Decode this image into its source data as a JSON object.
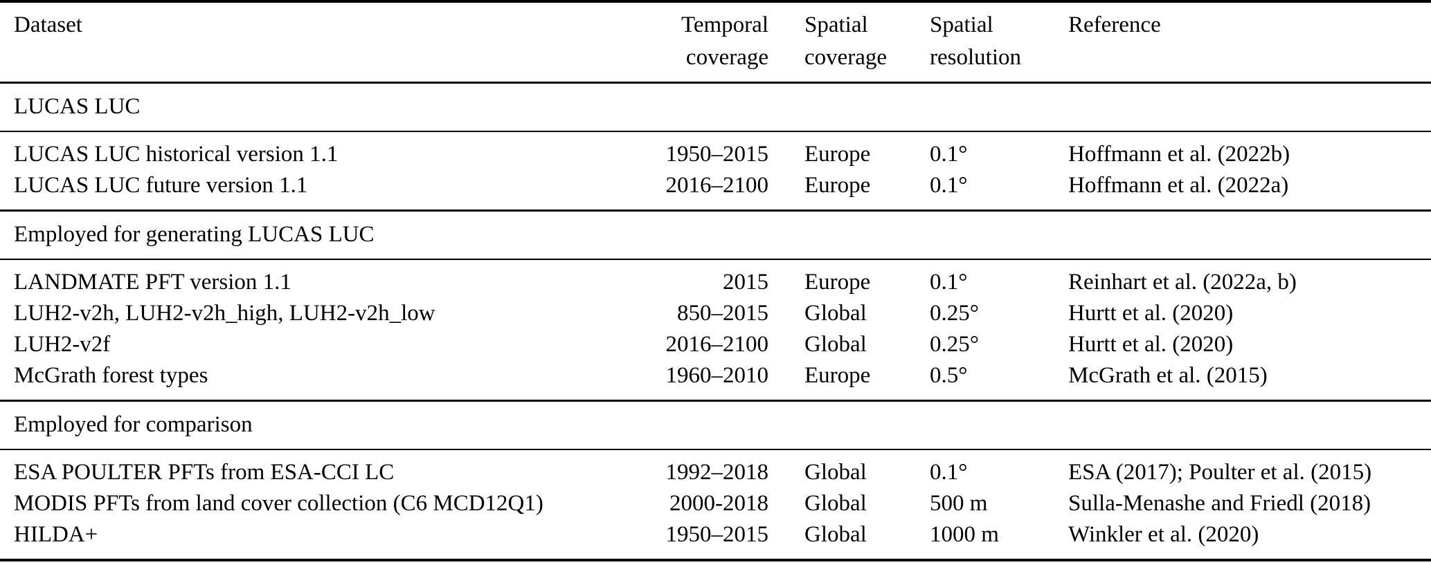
{
  "table": {
    "header": {
      "dataset": "Dataset",
      "temporal": {
        "line1": "Temporal",
        "line2": "coverage"
      },
      "spatial": {
        "line1": "Spatial",
        "line2": "coverage"
      },
      "resolution": {
        "line1": "Spatial",
        "line2": "resolution"
      },
      "reference": "Reference"
    },
    "sections": [
      {
        "title": "LUCAS LUC",
        "rows": [
          {
            "dataset": "LUCAS LUC historical version 1.1",
            "temporal": "1950–2015",
            "spatial": "Europe",
            "resolution": "0.1°",
            "reference": "Hoffmann et al. (2022b)"
          },
          {
            "dataset": "LUCAS LUC future version 1.1",
            "temporal": "2016–2100",
            "spatial": "Europe",
            "resolution": "0.1°",
            "reference": "Hoffmann et al. (2022a)"
          }
        ]
      },
      {
        "title": "Employed for generating LUCAS LUC",
        "rows": [
          {
            "dataset": "LANDMATE PFT version 1.1",
            "temporal": "2015",
            "spatial": "Europe",
            "resolution": "0.1°",
            "reference": "Reinhart et al. (2022a, b)"
          },
          {
            "dataset": "LUH2-v2h, LUH2-v2h_high, LUH2-v2h_low",
            "temporal": "850–2015",
            "spatial": "Global",
            "resolution": "0.25°",
            "reference": "Hurtt et al. (2020)"
          },
          {
            "dataset": "LUH2-v2f",
            "temporal": "2016–2100",
            "spatial": "Global",
            "resolution": "0.25°",
            "reference": "Hurtt et al. (2020)"
          },
          {
            "dataset": "McGrath forest types",
            "temporal": "1960–2010",
            "spatial": "Europe",
            "resolution": "0.5°",
            "reference": "McGrath et al. (2015)"
          }
        ]
      },
      {
        "title": "Employed for comparison",
        "rows": [
          {
            "dataset": "ESA POULTER PFTs from ESA-CCI LC",
            "temporal": "1992–2018",
            "spatial": "Global",
            "resolution": "0.1°",
            "reference": "ESA (2017); Poulter et al. (2015)"
          },
          {
            "dataset": "MODIS PFTs from land cover collection (C6 MCD12Q1)",
            "temporal": "2000-2018",
            "spatial": "Global",
            "resolution": "500 m",
            "reference": "Sulla-Menashe and Friedl (2018)"
          },
          {
            "dataset": "HILDA+",
            "temporal": "1950–2015",
            "spatial": "Global",
            "resolution": "1000 m",
            "reference": "Winkler et al. (2020)"
          }
        ]
      }
    ],
    "colors": {
      "text": "#000000",
      "background": "#ffffff",
      "rule": "#000000"
    }
  }
}
